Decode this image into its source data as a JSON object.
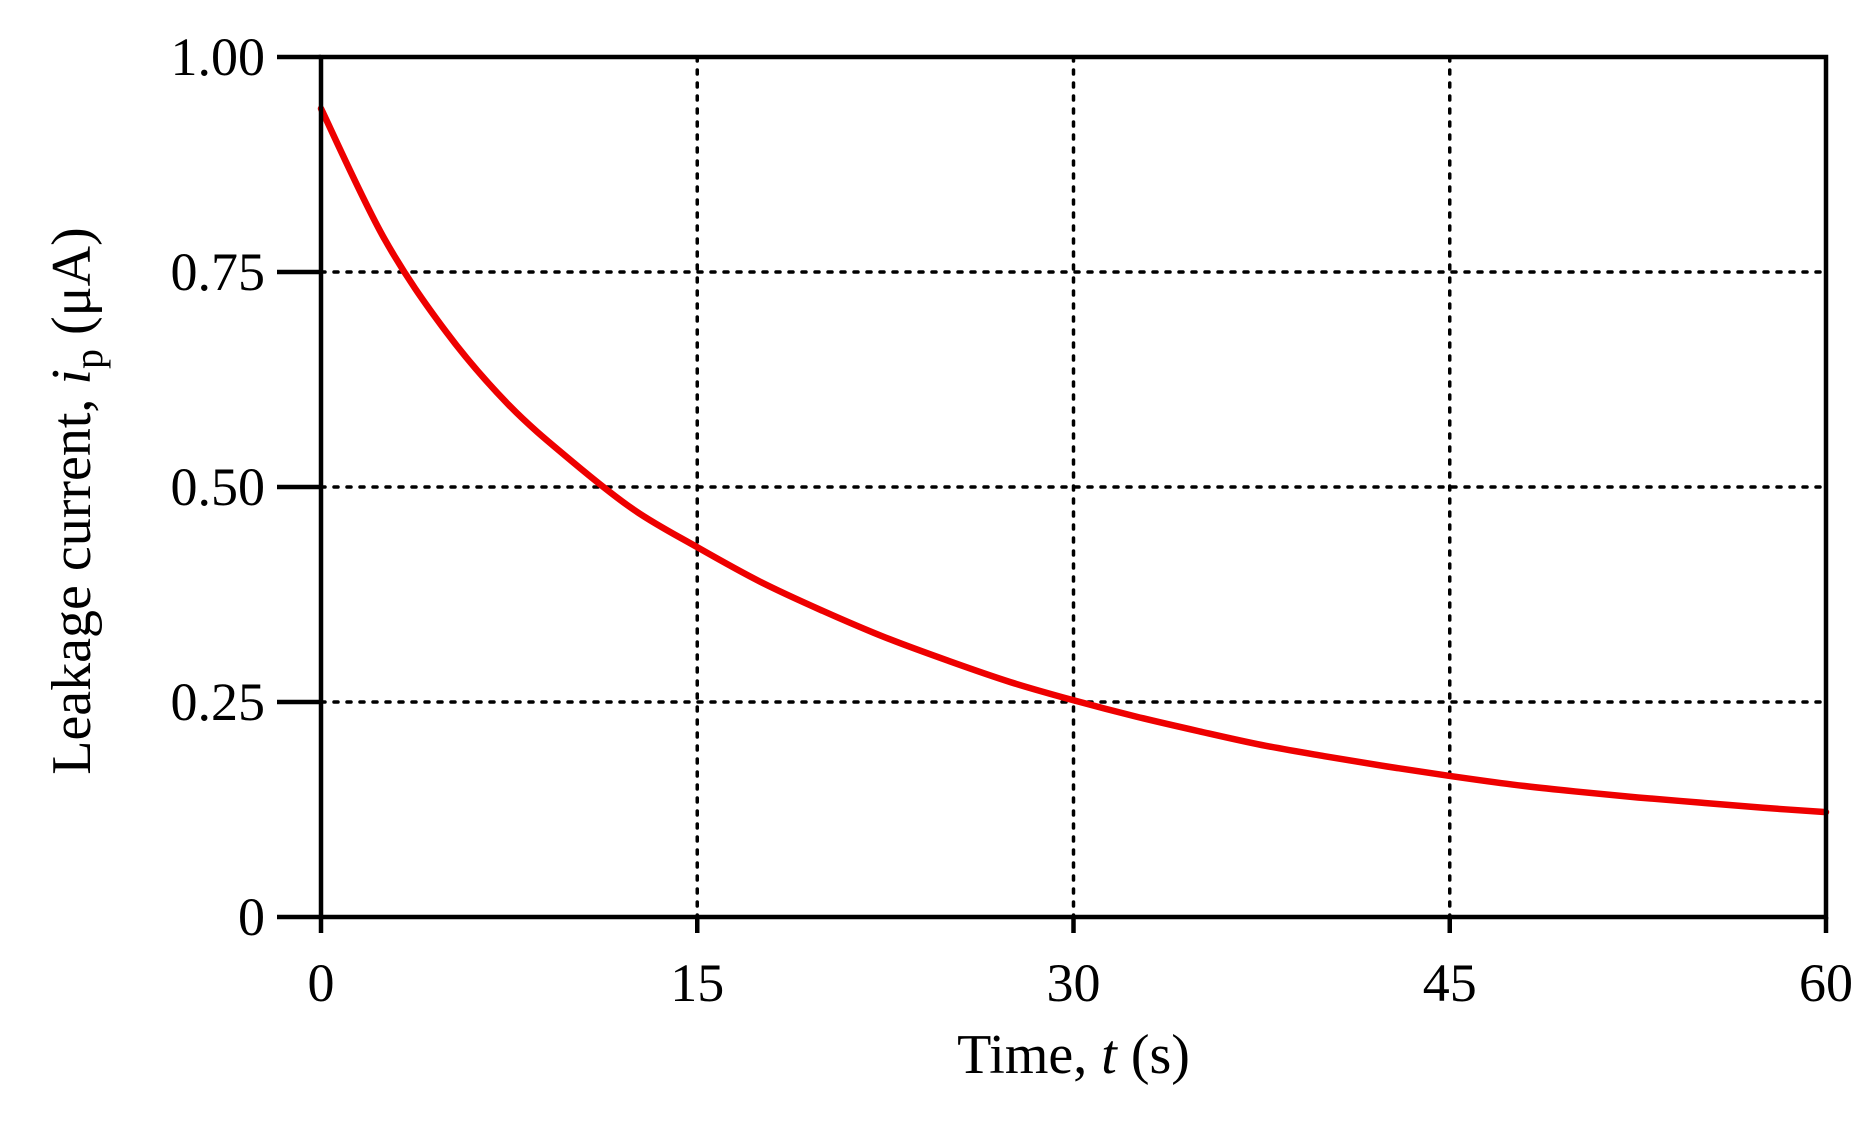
{
  "chart_data": {
    "type": "line",
    "title": "",
    "xlabel": {
      "prefix": "Time, ",
      "symbol": "t",
      "suffix": " (s)"
    },
    "ylabel": {
      "prefix": "Leakage current, ",
      "symbol": "i",
      "subscript": "p",
      "suffix": " (μA)"
    },
    "xlim": [
      0,
      60
    ],
    "ylim": [
      0,
      1
    ],
    "xticks": [
      0,
      15,
      30,
      45,
      60
    ],
    "xtick_labels": [
      "0",
      "15",
      "30",
      "45",
      "60"
    ],
    "yticks": [
      0,
      0.25,
      0.5,
      0.75,
      1.0
    ],
    "ytick_labels": [
      "0",
      "0.25",
      "0.50",
      "0.75",
      "1.00"
    ],
    "grid": true,
    "legend": "none",
    "series": [
      {
        "color": "#ee0000",
        "x": [
          0,
          2.5,
          5,
          7.5,
          10,
          12.5,
          15,
          17.5,
          20,
          22.5,
          25,
          27.5,
          30,
          32.5,
          35,
          37.5,
          40,
          42.5,
          45,
          47.5,
          50,
          52.5,
          55,
          57.5,
          60
        ],
        "y": [
          0.94,
          0.79,
          0.68,
          0.595,
          0.53,
          0.473,
          0.43,
          0.39,
          0.356,
          0.325,
          0.298,
          0.273,
          0.252,
          0.233,
          0.216,
          0.2,
          0.187,
          0.175,
          0.164,
          0.154,
          0.146,
          0.139,
          0.133,
          0.127,
          0.122
        ]
      }
    ]
  }
}
